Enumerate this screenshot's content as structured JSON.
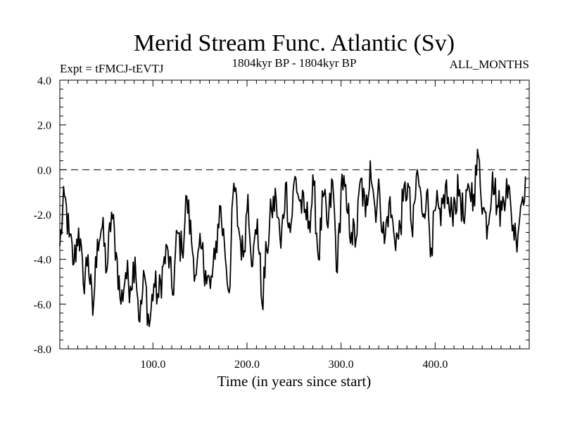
{
  "chart_data": {
    "type": "line",
    "title": "Merid Stream Func. Atlantic (Sv)",
    "subtitle": "1804kyr BP - 1804kyr BP",
    "experiment_label": "Expt = tFMCJ-tEVTJ",
    "period_label": "ALL_MONTHS",
    "xlabel": "Time (in years since start)",
    "ylabel": "",
    "xlim": [
      1,
      500
    ],
    "ylim": [
      -8.0,
      4.0
    ],
    "x_ticks": [
      100,
      200,
      300,
      400
    ],
    "x_tick_labels": [
      "100.0",
      "200.0",
      "300.0",
      "400.0"
    ],
    "y_ticks": [
      -8,
      -6,
      -4,
      -2,
      0,
      2,
      4
    ],
    "y_tick_labels": [
      "-8.0",
      "-6.0",
      "-4.0",
      "-2.0",
      "0.0",
      "2.0",
      "4.0"
    ],
    "reference_line": {
      "y": 0.0,
      "style": "dashed"
    },
    "series": [
      {
        "name": "Merid Stream Func. Atlantic",
        "x_start": 1,
        "x_step": 5,
        "values": [
          -3.4,
          -1.2,
          -3.0,
          -4.2,
          -2.6,
          -5.1,
          -3.8,
          -6.5,
          -3.1,
          -2.6,
          -4.5,
          -1.9,
          -3.7,
          -6.0,
          -4.6,
          -5.2,
          -3.9,
          -6.8,
          -4.7,
          -7.0,
          -5.1,
          -5.7,
          -4.3,
          -3.6,
          -5.6,
          -2.8,
          -3.7,
          -1.2,
          -3.2,
          -4.7,
          -3.5,
          -4.5,
          -5.3,
          -4.0,
          -1.6,
          -3.3,
          -5.5,
          -0.6,
          -2.6,
          -3.9,
          -1.1,
          -4.3,
          -2.2,
          -6.0,
          -3.6,
          -1.8,
          -1.3,
          -3.5,
          -0.6,
          -2.8,
          -0.3,
          -1.4,
          -1.9,
          -2.3,
          -0.7,
          -4.0,
          -1.2,
          -2.6,
          -0.5,
          -4.6,
          -0.2,
          -1.8,
          -2.8,
          -3.1,
          -0.4,
          -2.1,
          0.4,
          -1.7,
          -1.0,
          -3.3,
          -1.5,
          -2.8,
          -3.1,
          -1.4,
          -0.6,
          -3.0,
          0.0,
          -1.9,
          -1.0,
          -3.5,
          -1.6,
          -2.5,
          -0.7,
          -2.1,
          -1.4,
          -0.9,
          -2.4,
          -0.8,
          -1.1,
          0.6,
          -1.7,
          -2.5,
          -0.1,
          -1.6,
          -1.8,
          -0.4,
          -2.0,
          -3.1,
          -1.6,
          -0.3
        ]
      }
    ]
  }
}
